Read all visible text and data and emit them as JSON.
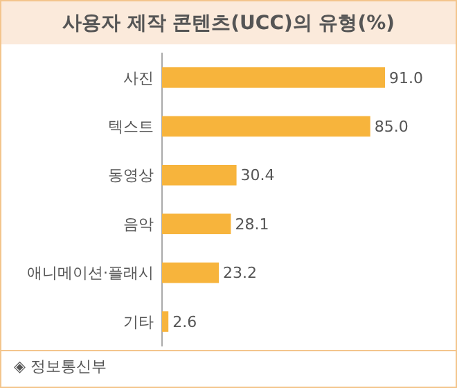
{
  "chart_data": {
    "type": "bar",
    "orientation": "horizontal",
    "title": "사용자 제작 콘텐츠(UCC)의 유형(%)",
    "categories": [
      "사진",
      "텍스트",
      "동영상",
      "음악",
      "애니메이션·플래시",
      "기타"
    ],
    "values": [
      91.0,
      85.0,
      30.4,
      28.1,
      23.2,
      2.6
    ],
    "value_labels": [
      "91.0",
      "85.0",
      "30.4",
      "28.1",
      "23.2",
      "2.6"
    ],
    "color": "#f7b43c",
    "annotations": [
      "◈ 정보통신부"
    ]
  }
}
